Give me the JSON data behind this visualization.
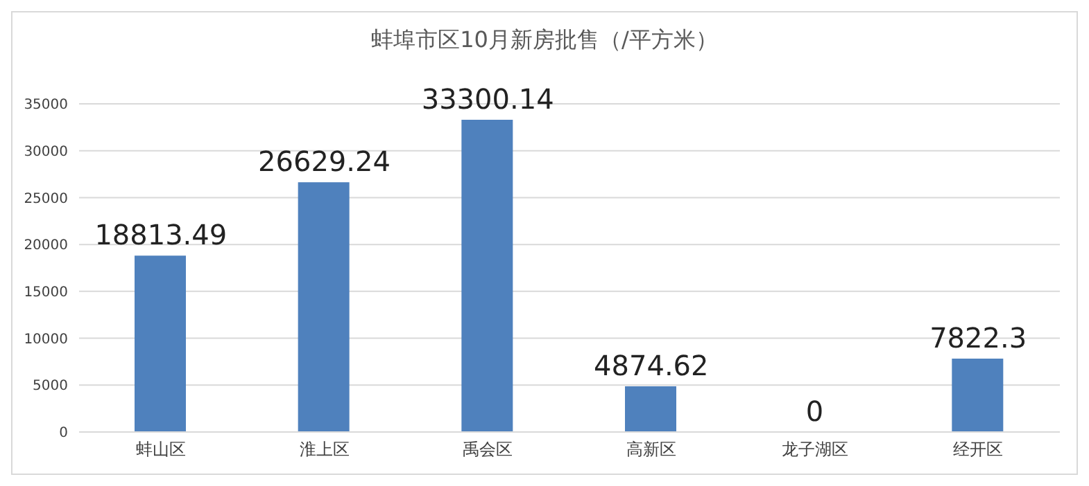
{
  "chart_data": {
    "type": "bar",
    "title": "蚌埠市区10月新房批售（/平方米）",
    "categories": [
      "蚌山区",
      "淮上区",
      "禹会区",
      "高新区",
      "龙子湖区",
      "经开区"
    ],
    "values": [
      18813.49,
      26629.24,
      33300.14,
      4874.62,
      0,
      7822.3
    ],
    "color": "#4f81bd",
    "ylim": [
      0,
      35000
    ],
    "yticks": [
      0,
      5000,
      10000,
      15000,
      20000,
      25000,
      30000,
      35000
    ],
    "grid": "y",
    "data_labels": true
  }
}
